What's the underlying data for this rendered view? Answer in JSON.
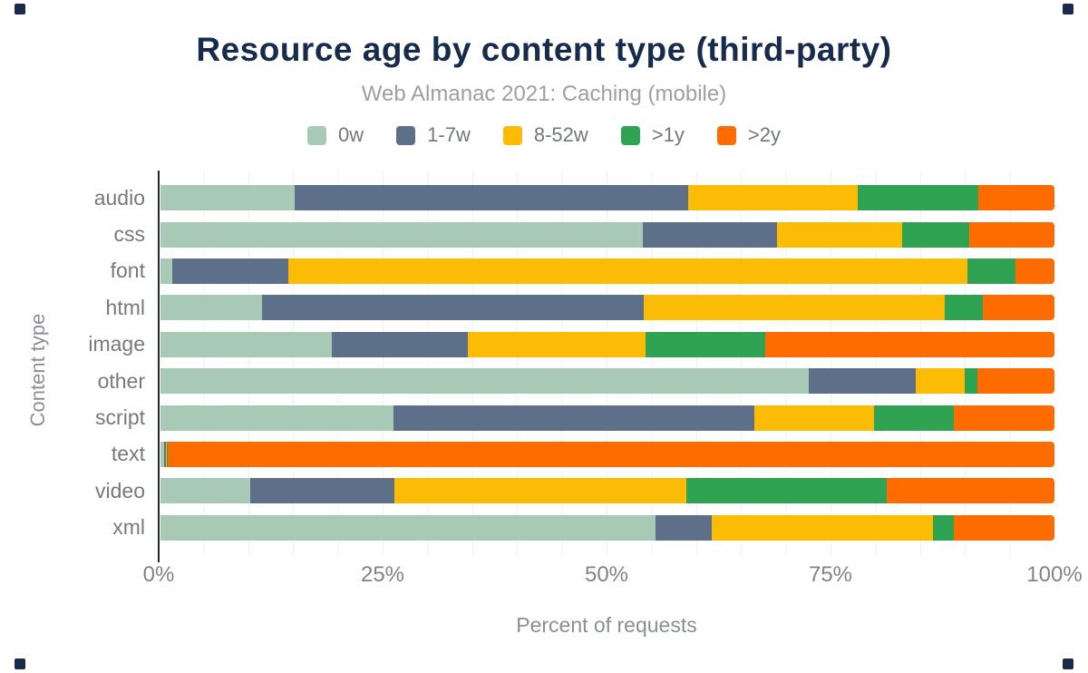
{
  "header": {
    "title": "Resource age by content type (third-party)",
    "subtitle": "Web Almanac 2021: Caching (mobile)"
  },
  "axes": {
    "x_label": "Percent of requests",
    "y_label": "Content type",
    "x_ticks": [
      "0%",
      "25%",
      "50%",
      "75%",
      "100%"
    ]
  },
  "legend": [
    {
      "label": "0w",
      "color": "#a7c9b5"
    },
    {
      "label": "1-7w",
      "color": "#5e7089"
    },
    {
      "label": "8-52w",
      "color": "#fcbc05"
    },
    {
      "label": ">1y",
      "color": "#30a352"
    },
    {
      "label": ">2y",
      "color": "#fe6c00"
    }
  ],
  "colors": {
    "title": "#172b4d",
    "subtitle": "#9aa0a6",
    "axis_line": "#24282c",
    "grid_line": "#eff1f4",
    "background": "#ffffff",
    "corner_mark": "#1a2b49"
  },
  "chart_data": {
    "type": "bar",
    "stacked": true,
    "orientation": "horizontal",
    "title": "Resource age by content type (third-party)",
    "subtitle": "Web Almanac 2021: Caching (mobile)",
    "xlabel": "Percent of requests",
    "ylabel": "Content type",
    "xlim": [
      0,
      100
    ],
    "x_tick_interval": 25,
    "grid": "vertical minor gridlines every 5%",
    "legend_position": "top",
    "categories": [
      "audio",
      "css",
      "font",
      "html",
      "image",
      "other",
      "script",
      "text",
      "video",
      "xml"
    ],
    "series": [
      {
        "name": "0w",
        "color": "#a7c9b5",
        "values": [
          15.0,
          54.0,
          1.3,
          11.4,
          19.2,
          72.5,
          26.1,
          0.4,
          10.0,
          55.4
        ]
      },
      {
        "name": "1-7w",
        "color": "#5e7089",
        "values": [
          44.0,
          15.0,
          13.0,
          42.7,
          15.2,
          12.0,
          40.3,
          0.2,
          16.2,
          6.3
        ]
      },
      {
        "name": "8-52w",
        "color": "#fcbc05",
        "values": [
          19.0,
          14.0,
          76.0,
          33.6,
          19.9,
          5.5,
          13.4,
          0.1,
          32.6,
          24.7
        ]
      },
      {
        "name": ">1y",
        "color": "#30a352",
        "values": [
          13.5,
          7.5,
          5.3,
          4.3,
          13.4,
          1.4,
          8.9,
          0.1,
          22.4,
          2.3
        ]
      },
      {
        "name": ">2y",
        "color": "#fe6c00",
        "values": [
          8.5,
          9.5,
          4.4,
          8.0,
          32.3,
          8.6,
          11.3,
          99.2,
          18.8,
          11.3
        ]
      }
    ]
  }
}
